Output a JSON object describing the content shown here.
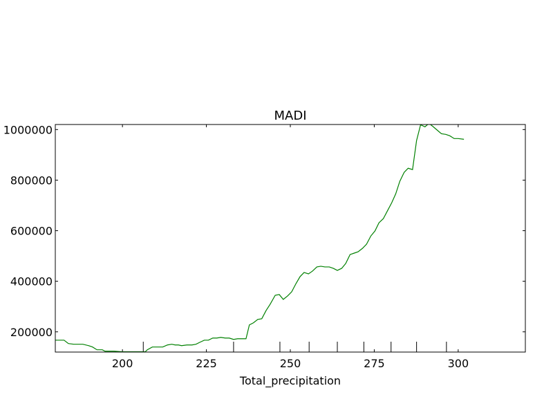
{
  "chart_data": {
    "type": "line",
    "title": "MADI",
    "x_label": "Total_precipitation",
    "x": [
      180.0,
      182.6,
      183.9,
      185.5,
      188.2,
      189.9,
      191.1,
      192.4,
      194.0,
      194.8,
      197.5,
      200.0,
      201.7,
      206.8,
      207.4,
      208.9,
      210.1,
      212.0,
      213.4,
      214.7,
      215.7,
      216.7,
      217.6,
      219.2,
      220.7,
      221.9,
      223.1,
      224.4,
      225.6,
      226.9,
      228.1,
      229.3,
      230.6,
      231.8,
      233.1,
      234.3,
      235.5,
      236.8,
      237.8,
      239.0,
      240.3,
      241.5,
      242.8,
      244.0,
      245.5,
      246.7,
      247.9,
      249.2,
      250.4,
      251.7,
      252.9,
      254.1,
      255.4,
      256.6,
      257.9,
      259.1,
      260.3,
      261.6,
      262.8,
      264.0,
      265.3,
      266.5,
      267.8,
      269.0,
      270.2,
      271.5,
      272.7,
      274.0,
      275.2,
      276.4,
      277.7,
      278.9,
      280.2,
      281.4,
      282.6,
      283.9,
      285.1,
      286.4,
      287.6,
      288.8,
      290.1,
      291.3,
      292.6,
      293.8,
      295.0,
      296.3,
      297.5,
      298.8,
      300.0,
      301.7
    ],
    "series": [
      {
        "color": "#008000",
        "values": [
          167000,
          167000,
          153600,
          150900,
          150900,
          145400,
          140000,
          129000,
          129000,
          123500,
          123500,
          121000,
          121000,
          121000,
          129000,
          140000,
          140000,
          140000,
          148100,
          150900,
          148100,
          148100,
          145400,
          148100,
          148100,
          150900,
          159000,
          167000,
          167000,
          175400,
          175400,
          178200,
          175400,
          175400,
          170000,
          172700,
          172700,
          172700,
          227300,
          235500,
          249100,
          251900,
          284600,
          309200,
          344700,
          347500,
          328300,
          342000,
          358300,
          391100,
          418400,
          434800,
          429300,
          440200,
          456600,
          459400,
          456600,
          456600,
          451100,
          442900,
          451100,
          470300,
          505800,
          511200,
          516700,
          530300,
          546700,
          579500,
          598600,
          631400,
          647700,
          677800,
          710500,
          746000,
          795200,
          830700,
          847000,
          841600,
          956300,
          1019000,
          1010800,
          1024500,
          1010800,
          997100,
          983500,
          980800,
          975300,
          964400,
          964400,
          961600
        ]
      }
    ],
    "deciles": [
      206.2,
      233.1,
      246.9,
      255.6,
      264.0,
      271.9,
      280.0,
      287.6,
      296.5
    ],
    "xlim": [
      180,
      320
    ],
    "ylim": [
      120000,
      1020000
    ],
    "xticks": [
      200,
      225,
      250,
      275,
      300
    ],
    "yticks": [
      200000,
      400000,
      600000,
      800000,
      1000000
    ],
    "grid": false
  }
}
